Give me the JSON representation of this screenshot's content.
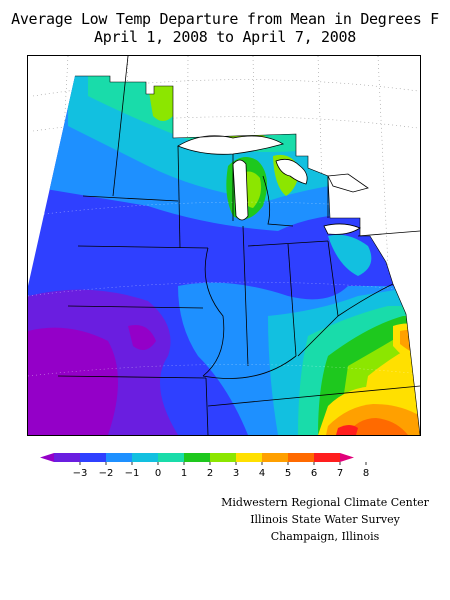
{
  "title": {
    "line1": "Average Low Temp Departure from Mean in Degrees F",
    "line2": "April 1, 2008 to April 7, 2008"
  },
  "legend": {
    "ticks": [
      "−3",
      "−2",
      "−1",
      "0",
      "1",
      "2",
      "3",
      "4",
      "5",
      "6",
      "7",
      "8"
    ],
    "colors": [
      "#9400c8",
      "#6a1ee0",
      "#2f40ff",
      "#1e90ff",
      "#12c0e0",
      "#19dcaa",
      "#1ec81e",
      "#8ce600",
      "#ffe000",
      "#ffa000",
      "#ff6a00",
      "#ff1e1e",
      "#e0007a"
    ]
  },
  "credits": {
    "line1": "Midwestern Regional Climate Center",
    "line2": "Illinois State Water Survey",
    "line3": "Champaign, Illinois"
  }
}
